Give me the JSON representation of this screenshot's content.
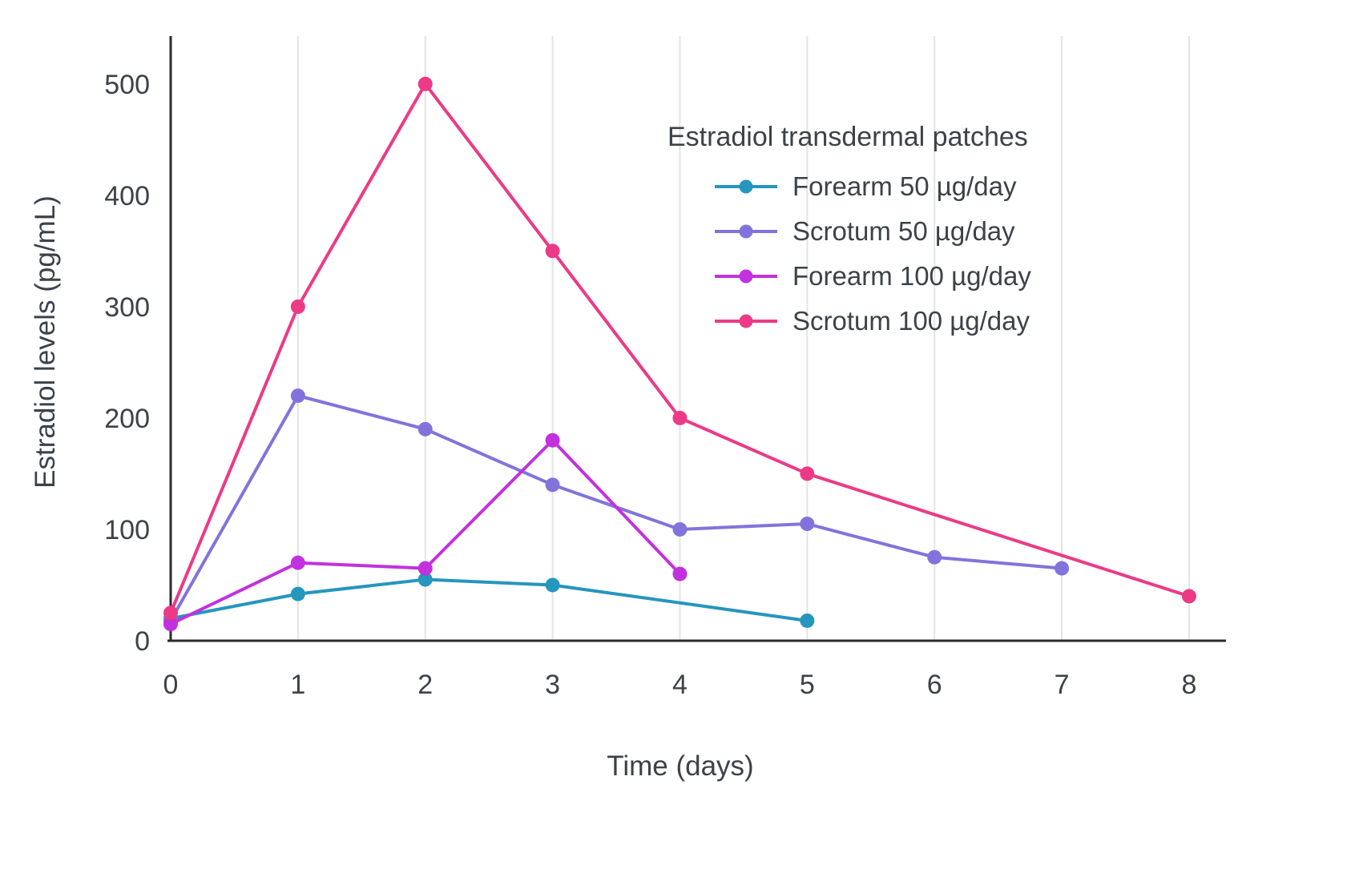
{
  "chart_data": {
    "type": "line",
    "legend_title": "Estradiol transdermal patches",
    "xlabel": "Time (days)",
    "ylabel": "Estradiol levels (pg/mL)",
    "x_range": [
      0,
      8.29
    ],
    "y_range": [
      0,
      543
    ],
    "xticks": [
      0,
      1,
      2,
      3,
      4,
      5,
      6,
      7,
      8
    ],
    "yticks": [
      0,
      100,
      200,
      300,
      400,
      500
    ],
    "grid": "vertical",
    "legend_position": "inside-top-right",
    "axis_color": "#2b2b2b",
    "grid_color": "#e4e4e4",
    "text_color": "#3d4248",
    "series": [
      {
        "name": "Forearm 50 µg/day",
        "color": "#2596be",
        "x": [
          0,
          1,
          2,
          3,
          5
        ],
        "y": [
          20,
          42,
          55,
          50,
          18
        ]
      },
      {
        "name": "Scrotum 50 µg/day",
        "color": "#8273dc",
        "x": [
          0,
          1,
          2,
          3,
          4,
          5,
          6,
          7
        ],
        "y": [
          18,
          220,
          190,
          140,
          100,
          105,
          75,
          65
        ]
      },
      {
        "name": "Forearm 100 µg/day",
        "color": "#c231de",
        "x": [
          0,
          1,
          2,
          3,
          4
        ],
        "y": [
          15,
          70,
          65,
          180,
          60
        ]
      },
      {
        "name": "Scrotum 100 µg/day",
        "color": "#ec3a87",
        "x": [
          0,
          1,
          2,
          3,
          4,
          5,
          8
        ],
        "y": [
          25,
          300,
          500,
          350,
          200,
          150,
          40
        ]
      }
    ]
  }
}
